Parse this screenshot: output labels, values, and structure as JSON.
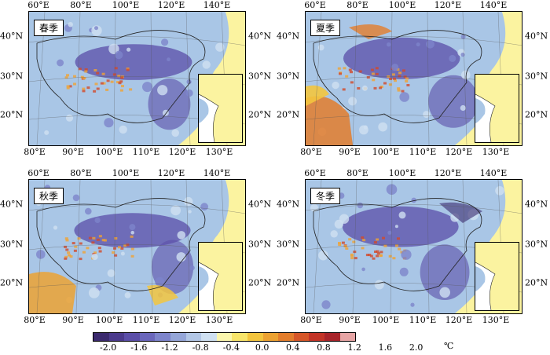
{
  "panels": [
    {
      "id": "spring",
      "label": "春季"
    },
    {
      "id": "summer",
      "label": "夏季"
    },
    {
      "id": "autumn",
      "label": "秋季"
    },
    {
      "id": "winter",
      "label": "冬季"
    }
  ],
  "axes": {
    "top_lon_labels": [
      "60°E",
      "80°E",
      "100°E",
      "120°E",
      "140°E"
    ],
    "bottom_lon_labels": [
      "80°E",
      "90°E",
      "100°E",
      "110°E",
      "120°E",
      "130°E"
    ],
    "left_lat_labels": [
      "40°N",
      "30°N",
      "20°N"
    ],
    "right_lat_labels": [
      "40°N",
      "30°N",
      "20°N"
    ]
  },
  "colorbar": {
    "labels": [
      "-2.0",
      "-1.6",
      "-1.2",
      "-0.8",
      "-0.4",
      "0.0",
      "0.4",
      "0.8",
      "1.2",
      "1.6",
      "2.0"
    ],
    "unit": "℃",
    "colors": [
      "#3b2a6e",
      "#4b3a8c",
      "#5b4ea8",
      "#6a66bb",
      "#7d84cb",
      "#95a6d8",
      "#b3c7e6",
      "#cfe0f1",
      "#fbf6ad",
      "#f8e56a",
      "#f3c53e",
      "#eca232",
      "#e37d2c",
      "#d65628",
      "#c33427",
      "#a8242a",
      "#e7a5a5"
    ]
  },
  "map_colors": {
    "ocean": "#fbf3a0",
    "land_base": "#a9c6e6",
    "cold": "#5b4ea8",
    "warm": "#f0a233",
    "hot": "#d24a2a",
    "inset_land": "#fbf3a0"
  }
}
